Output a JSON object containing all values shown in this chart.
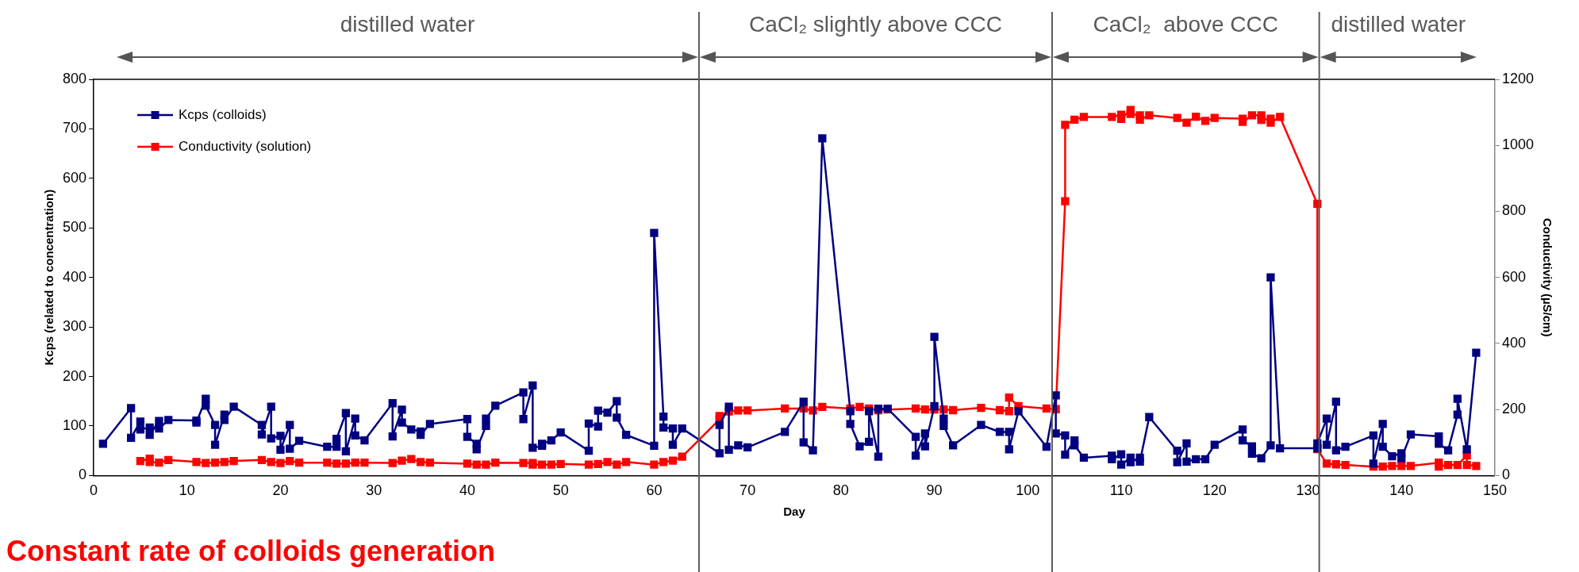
{
  "chart_data": {
    "type": "line",
    "xlabel": "Day",
    "ylabel": "Kcps (related to concentration)",
    "y2label": "Conductivity (µS/cm)",
    "xlim": [
      0,
      150
    ],
    "xticks": [
      0,
      10,
      20,
      30,
      40,
      50,
      60,
      70,
      80,
      90,
      100,
      110,
      120,
      130,
      140,
      150
    ],
    "ylim": [
      0,
      800
    ],
    "yticks": [
      0,
      100,
      200,
      300,
      400,
      500,
      600,
      700,
      800
    ],
    "y2lim": [
      0,
      1200
    ],
    "y2ticks": [
      0,
      200,
      400,
      600,
      800,
      1000,
      1200
    ],
    "marker": "square",
    "line_style": "solid",
    "legend": "top left",
    "series": [
      {
        "name": "Kcps (colloids)",
        "color": "#000080",
        "x": [
          1,
          4,
          4,
          5,
          5,
          6,
          6,
          7,
          7,
          8,
          11,
          11,
          12,
          12,
          13,
          13,
          14,
          14,
          15,
          18,
          18,
          19,
          19,
          20,
          20,
          21,
          21,
          22,
          25,
          26,
          26,
          27,
          27,
          28,
          28,
          29,
          32,
          32,
          33,
          33,
          34,
          35,
          35,
          36,
          40,
          40,
          41,
          41,
          42,
          42,
          43,
          46,
          46,
          47,
          47,
          48,
          48,
          49,
          50,
          53,
          53,
          54,
          54,
          55,
          56,
          56,
          57,
          60,
          60,
          61,
          61,
          62,
          62,
          63,
          67,
          67,
          68,
          68,
          69,
          70,
          74,
          76,
          76,
          77,
          78,
          81,
          81,
          82,
          83,
          83,
          84,
          84,
          85,
          88,
          88,
          89,
          89,
          90,
          90,
          91,
          91,
          92,
          95,
          97,
          98,
          98,
          99,
          102,
          103,
          103,
          104,
          104,
          105,
          105,
          106,
          109,
          109,
          110,
          110,
          111,
          111,
          112,
          112,
          113,
          116,
          116,
          117,
          117,
          118,
          119,
          120,
          123,
          123,
          124,
          124,
          125,
          126,
          126,
          127,
          131,
          131,
          132,
          132,
          133,
          133,
          134,
          137,
          137,
          138,
          138,
          139,
          140,
          140,
          141,
          144,
          144,
          145,
          146,
          146,
          147,
          148
        ],
        "values": [
          64,
          136,
          76,
          109,
          93,
          97,
          82,
          110,
          95,
          112,
          111,
          107,
          155,
          141,
          102,
          62,
          123,
          112,
          139,
          102,
          83,
          139,
          75,
          80,
          52,
          102,
          54,
          70,
          58,
          58,
          74,
          126,
          49,
          115,
          81,
          71,
          146,
          79,
          133,
          107,
          93,
          89,
          82,
          104,
          114,
          78,
          64,
          53,
          100,
          115,
          141,
          168,
          114,
          182,
          56,
          60,
          64,
          71,
          87,
          50,
          105,
          99,
          131,
          127,
          150,
          117,
          82,
          60,
          490,
          119,
          97,
          95,
          62,
          95,
          45,
          102,
          139,
          52,
          61,
          57,
          88,
          149,
          67,
          51,
          681,
          130,
          104,
          59,
          68,
          130,
          38,
          135,
          135,
          78,
          40,
          85,
          59,
          140,
          280,
          115,
          100,
          61,
          102,
          88,
          88,
          53,
          130,
          58,
          162,
          85,
          81,
          42,
          71,
          61,
          36,
          40,
          33,
          43,
          22,
          36,
          27,
          36,
          28,
          118,
          50,
          27,
          65,
          28,
          33,
          33,
          62,
          93,
          71,
          59,
          44,
          35,
          61,
          400,
          55,
          55,
          65,
          115,
          62,
          149,
          51,
          58,
          81,
          24,
          104,
          58,
          39,
          45,
          35,
          83,
          79,
          64,
          51,
          123,
          155,
          53,
          248
        ]
      },
      {
        "name": "Conductivity (solution)",
        "color": "#ff0000",
        "axis": "y2",
        "x": [
          5,
          6,
          6,
          7,
          8,
          11,
          12,
          13,
          14,
          15,
          18,
          19,
          20,
          21,
          22,
          25,
          26,
          27,
          28,
          29,
          32,
          33,
          34,
          35,
          36,
          40,
          41,
          42,
          43,
          46,
          47,
          47,
          48,
          49,
          50,
          53,
          54,
          55,
          56,
          57,
          60,
          61,
          62,
          63,
          67,
          67,
          68,
          69,
          70,
          74,
          76,
          77,
          78,
          81,
          82,
          83,
          84,
          85,
          88,
          89,
          90,
          91,
          92,
          95,
          97,
          98,
          98,
          99,
          102,
          103,
          104,
          104,
          105,
          106,
          109,
          110,
          110,
          111,
          111,
          112,
          112,
          113,
          116,
          117,
          118,
          119,
          120,
          123,
          123,
          124,
          125,
          125,
          126,
          126,
          127,
          131,
          131,
          132,
          133,
          134,
          137,
          138,
          139,
          140,
          141,
          144,
          144,
          145,
          146,
          147,
          147,
          148
        ],
        "values": [
          44,
          51,
          41,
          39,
          47,
          41,
          38,
          39,
          41,
          44,
          47,
          41,
          38,
          44,
          39,
          39,
          36,
          36,
          39,
          39,
          38,
          45,
          50,
          41,
          39,
          36,
          33,
          33,
          39,
          38,
          38,
          33,
          33,
          33,
          35,
          33,
          35,
          41,
          33,
          41,
          33,
          41,
          45,
          57,
          170,
          180,
          194,
          197,
          197,
          203,
          203,
          197,
          208,
          203,
          208,
          203,
          198,
          200,
          203,
          200,
          200,
          200,
          198,
          205,
          198,
          195,
          236,
          210,
          203,
          201,
          831,
          1062,
          1078,
          1086,
          1086,
          1093,
          1080,
          1107,
          1095,
          1091,
          1078,
          1091,
          1083,
          1069,
          1087,
          1074,
          1083,
          1081,
          1071,
          1091,
          1091,
          1077,
          1081,
          1069,
          1086,
          823,
          80,
          36,
          34,
          32,
          27,
          27,
          29,
          29,
          29,
          39,
          27,
          32,
          32,
          61,
          32,
          29
        ]
      }
    ],
    "ref_lines": [
      {
        "axis": "x",
        "value": 64.8,
        "color": "#595959"
      },
      {
        "axis": "x",
        "value": 102.6,
        "color": "#595959"
      },
      {
        "axis": "x",
        "value": 131.2,
        "color": "#595959"
      }
    ],
    "annotations": [
      "distilled water",
      "CaCl₂ slightly above CCC",
      "CaCl₂  above CCC",
      "distilled water",
      "Constant rate of colloids generation"
    ]
  }
}
